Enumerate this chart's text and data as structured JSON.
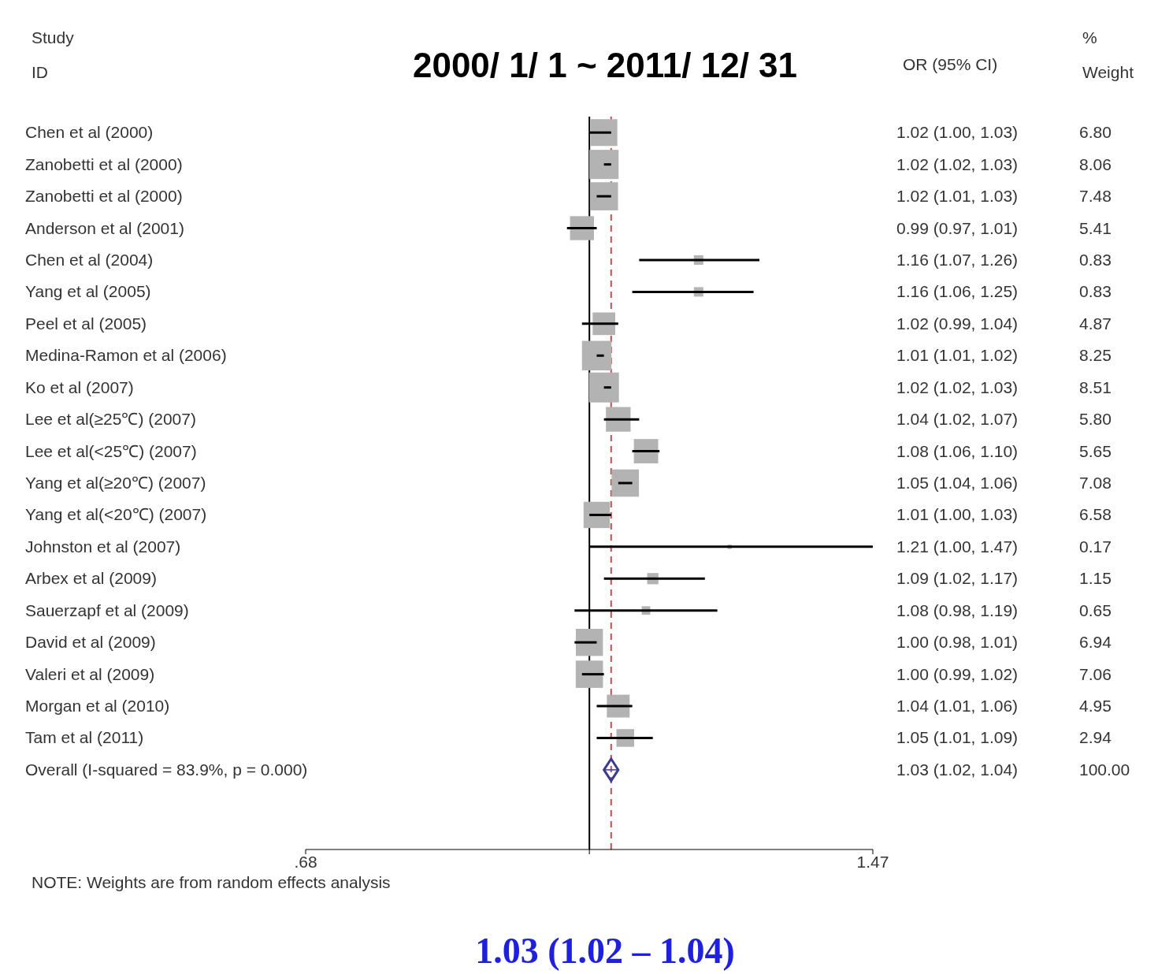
{
  "chart_data": {
    "type": "scatter",
    "orientation": "horizontal",
    "title": "2000/ 1/ 1 ~ 2011/ 12/ 31",
    "ylabel": "Study ID",
    "categories": [
      "Chen et al (2000)",
      "Zanobetti et al (2000)",
      "Zanobetti et al (2000)",
      "Anderson et al (2001)",
      "Chen et al (2004)",
      "Yang et al (2005)",
      "Peel et al (2005)",
      "Medina-Ramon et al (2006)",
      "Ko et al (2007)",
      "Lee et al(≥25℃) (2007)",
      "Lee et al(<25℃) (2007)",
      "Yang et al(≥20℃) (2007)",
      "Yang et al(<20℃) (2007)",
      "Johnston et al (2007)",
      "Arbex et al (2009)",
      "Sauerzapf et al (2009)",
      "David et al (2009)",
      "Valeri et al (2009)",
      "Morgan et al (2010)",
      "Tam et al (2011)",
      "Overall  (I-squared = 83.9%, p = 0.000)"
    ],
    "series": [
      {
        "type": "bubble",
        "marker": "square",
        "color": "#b3b3b3",
        "values": [
          1.02,
          1.02,
          1.02,
          0.99,
          1.16,
          1.16,
          1.02,
          1.01,
          1.02,
          1.04,
          1.08,
          1.05,
          1.01,
          1.21,
          1.09,
          1.08,
          1.0,
          1.0,
          1.04,
          1.05,
          null
        ],
        "errors": [
          [
            1.0,
            1.03
          ],
          [
            1.02,
            1.03
          ],
          [
            1.01,
            1.03
          ],
          [
            0.97,
            1.01
          ],
          [
            1.07,
            1.26
          ],
          [
            1.06,
            1.25
          ],
          [
            0.99,
            1.04
          ],
          [
            1.01,
            1.02
          ],
          [
            1.02,
            1.03
          ],
          [
            1.02,
            1.07
          ],
          [
            1.06,
            1.1
          ],
          [
            1.04,
            1.06
          ],
          [
            1.0,
            1.03
          ],
          [
            1.0,
            1.47
          ],
          [
            1.02,
            1.17
          ],
          [
            0.98,
            1.19
          ],
          [
            0.98,
            1.01
          ],
          [
            0.99,
            1.02
          ],
          [
            1.01,
            1.06
          ],
          [
            1.01,
            1.09
          ],
          null
        ],
        "sizes": [
          0.8,
          0.95,
          0.88,
          0.64,
          0.1,
          0.1,
          0.57,
          0.97,
          1,
          0.68,
          0.66,
          0.83,
          0.77,
          0.02,
          0.14,
          0.08,
          0.82,
          0.83,
          0.58,
          0.35,
          null
        ],
        "value_labels": [
          "1.02 (1.00, 1.03)",
          "1.02 (1.02, 1.03)",
          "1.02 (1.01, 1.03)",
          "0.99 (0.97, 1.01)",
          "1.16 (1.07, 1.26)",
          "1.16 (1.06, 1.25)",
          "1.02 (0.99, 1.04)",
          "1.01 (1.01, 1.02)",
          "1.02 (1.02, 1.03)",
          "1.04 (1.02, 1.07)",
          "1.08 (1.06, 1.10)",
          "1.05 (1.04, 1.06)",
          "1.01 (1.00, 1.03)",
          "1.21 (1.00, 1.47)",
          "1.09 (1.02, 1.17)",
          "1.08 (0.98, 1.19)",
          "1.00 (0.98, 1.01)",
          "1.00 (0.99, 1.02)",
          "1.04 (1.01, 1.06)",
          "1.05 (1.01, 1.09)",
          null
        ]
      },
      {
        "marker": "diamond",
        "color": "#3c3c8c",
        "values": [
          null,
          null,
          null,
          null,
          null,
          null,
          null,
          null,
          null,
          null,
          null,
          null,
          null,
          null,
          null,
          null,
          null,
          null,
          null,
          null,
          1.03
        ],
        "errors": [
          null,
          null,
          null,
          null,
          null,
          null,
          null,
          null,
          null,
          null,
          null,
          null,
          null,
          null,
          null,
          null,
          null,
          null,
          null,
          null,
          [
            1.02,
            1.04
          ]
        ]
      }
    ],
    "log": "x",
    "xlim": [
      0.68,
      1.47
    ],
    "xticks": [
      {
        "value": 0.68,
        "label": ".68"
      },
      {
        "value": 1,
        "label": null
      },
      {
        "value": 1.47,
        "label": "1.47"
      }
    ],
    "ref_lines": [
      {
        "axis": "x",
        "value": 1,
        "color": "#000000",
        "line_style": "solid"
      },
      {
        "axis": "x",
        "value": 1.03,
        "color": "#c0504d",
        "line_style": "dashed"
      }
    ],
    "annotations": [
      "OR (95% CI)",
      "% Weight",
      "NOTE: Weights are from random effects analysis",
      "1.03 (1.02 – 1.04)",
      "6.80",
      "8.06",
      "7.48",
      "5.41",
      "0.83",
      "0.83",
      "4.87",
      "8.25",
      "8.51",
      "5.80",
      "5.65",
      "7.08",
      "6.58",
      "0.17",
      "1.15",
      "0.65",
      "6.94",
      "7.06",
      "4.95",
      "2.94",
      "100.00",
      "1.03 (1.02, 1.04)"
    ],
    "legend": false,
    "grid": false
  }
}
